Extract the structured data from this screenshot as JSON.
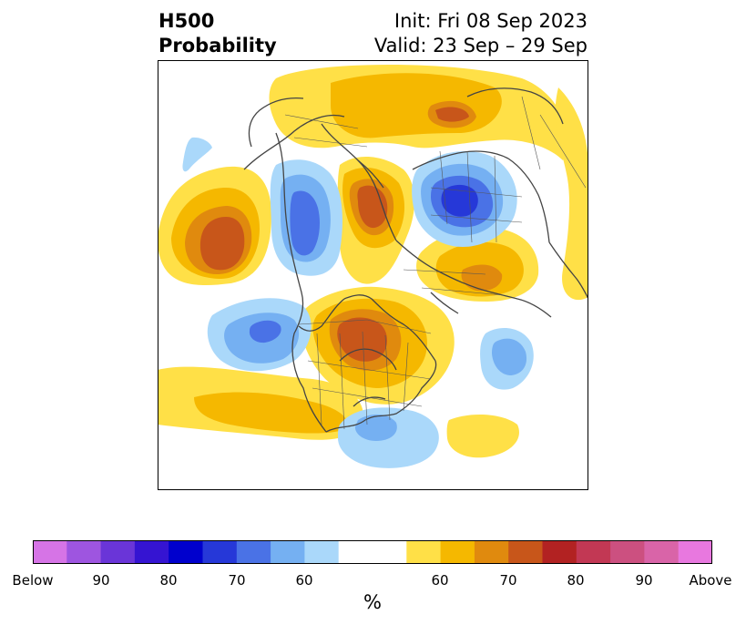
{
  "title": {
    "left_line1": "H500",
    "left_line2": "Probability",
    "right_line1": "Init: Fri 08 Sep 2023",
    "right_line2": "Valid: 23 Sep – 29 Sep"
  },
  "colorbar": {
    "unit": "%",
    "labels": [
      "Below",
      "90",
      "80",
      "70",
      "60",
      "60",
      "70",
      "80",
      "90",
      "Above"
    ],
    "colors": [
      "#d674e6",
      "#9e55e0",
      "#6a35d8",
      "#3514d2",
      "#0000cd",
      "#2638d8",
      "#4a72e6",
      "#75b0f2",
      "#aad8fa",
      "#ffffff",
      "#ffffff",
      "#ffe047",
      "#f5b800",
      "#e08a0e",
      "#c8561a",
      "#b22222",
      "#c23854",
      "#cc5080",
      "#d964a8",
      "#e878df"
    ]
  }
}
